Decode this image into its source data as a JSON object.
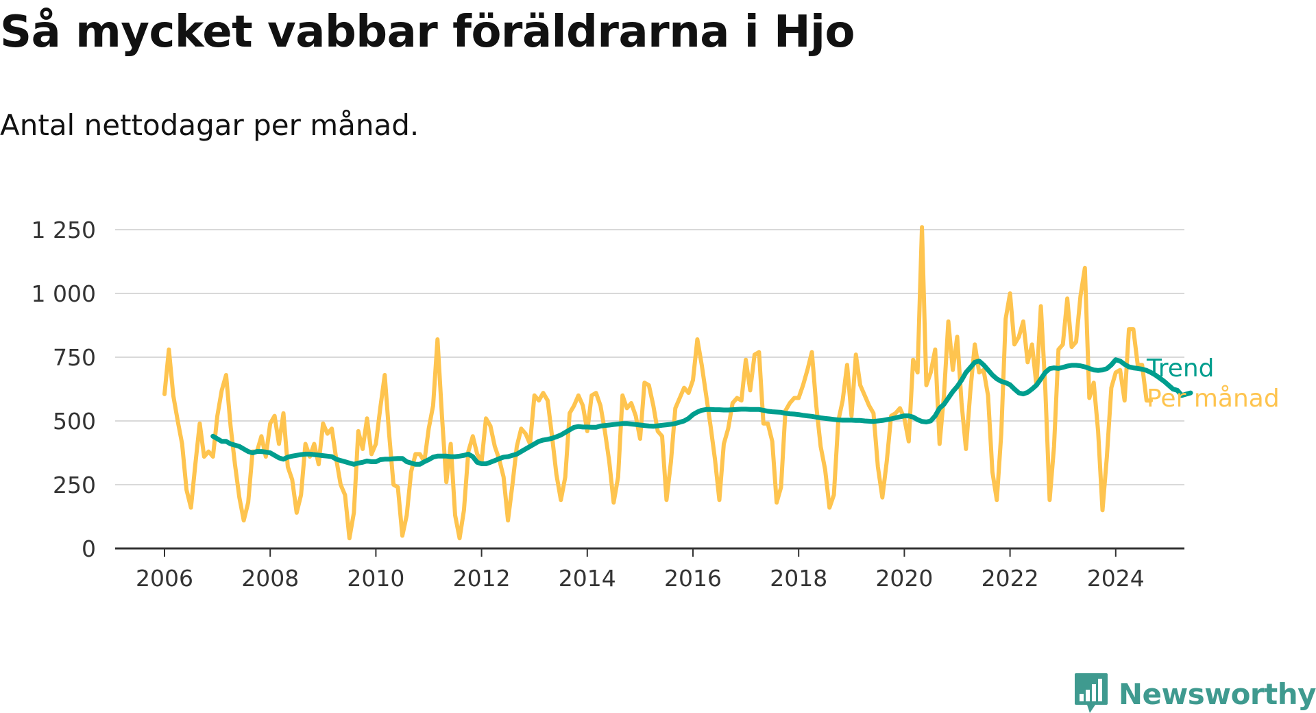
{
  "title": "Så mycket vabbar föräldrarna i Hjo",
  "subtitle": "Antal nettodagar per månad.",
  "brand": {
    "name": "Newsworthy",
    "icon": "bar-chart-speech-bubble-icon"
  },
  "colors": {
    "monthly": "#fec44f",
    "trend": "#009e8e",
    "grid": "#d9d9d9",
    "axis": "#333333",
    "brand": "#3f9a8f"
  },
  "chart_data": {
    "type": "line",
    "x_axis": {
      "range": [
        "2006-01",
        "2024-05"
      ],
      "ticks": [
        "2006",
        "2008",
        "2010",
        "2012",
        "2014",
        "2016",
        "2018",
        "2020",
        "2022",
        "2024"
      ]
    },
    "y_axis": {
      "range": [
        0,
        1250
      ],
      "ticks": [
        0,
        250,
        500,
        750,
        1000,
        1250
      ],
      "tick_labels": [
        "0",
        "250",
        "500",
        "750",
        "1 000",
        "1 250"
      ]
    },
    "grid": "horizontal",
    "legend_placement": "right-end-of-lines",
    "series": [
      {
        "name": "Per månad",
        "color": "#fec44f",
        "start": "2006-01",
        "values": [
          605,
          780,
          600,
          500,
          410,
          230,
          160,
          330,
          490,
          360,
          380,
          360,
          520,
          620,
          680,
          480,
          330,
          200,
          110,
          180,
          380,
          380,
          440,
          360,
          490,
          520,
          410,
          530,
          320,
          270,
          140,
          210,
          410,
          360,
          410,
          330,
          490,
          450,
          470,
          350,
          250,
          210,
          40,
          140,
          460,
          390,
          510,
          370,
          410,
          550,
          680,
          450,
          250,
          240,
          50,
          130,
          300,
          370,
          370,
          340,
          470,
          560,
          820,
          520,
          260,
          410,
          130,
          40,
          150,
          380,
          440,
          370,
          340,
          510,
          480,
          400,
          350,
          280,
          110,
          250,
          400,
          470,
          450,
          410,
          600,
          580,
          610,
          580,
          440,
          290,
          190,
          280,
          530,
          560,
          600,
          560,
          460,
          600,
          610,
          560,
          460,
          340,
          180,
          280,
          600,
          550,
          570,
          520,
          430,
          650,
          640,
          560,
          460,
          440,
          190,
          340,
          550,
          590,
          630,
          610,
          660,
          820,
          720,
          600,
          480,
          350,
          190,
          410,
          470,
          570,
          590,
          580,
          740,
          620,
          760,
          770,
          490,
          490,
          420,
          180,
          240,
          540,
          570,
          590,
          590,
          640,
          700,
          770,
          560,
          400,
          310,
          160,
          210,
          500,
          580,
          720,
          520,
          760,
          640,
          600,
          560,
          530,
          320,
          200,
          340,
          520,
          530,
          550,
          510,
          420,
          740,
          690,
          1260,
          640,
          690,
          780,
          410,
          600,
          890,
          700,
          830,
          570,
          390,
          620,
          800,
          690,
          700,
          600,
          300,
          190,
          450,
          900,
          1000,
          800,
          830,
          890,
          730,
          800,
          640,
          950,
          630,
          190,
          400,
          780,
          800,
          980,
          790,
          810,
          990,
          1100,
          590,
          650,
          460,
          150,
          360,
          630,
          690,
          700,
          580,
          860,
          860,
          720,
          720,
          580,
          580
        ]
      },
      {
        "name": "Trend",
        "color": "#009e8e",
        "start": "2006-12",
        "values": [
          440,
          430,
          420,
          420,
          410,
          405,
          400,
          390,
          380,
          375,
          380,
          380,
          378,
          375,
          365,
          355,
          350,
          358,
          362,
          365,
          368,
          370,
          370,
          368,
          366,
          364,
          362,
          360,
          350,
          345,
          340,
          335,
          330,
          335,
          338,
          343,
          340,
          340,
          348,
          350,
          350,
          352,
          353,
          353,
          340,
          335,
          330,
          330,
          340,
          348,
          358,
          362,
          362,
          362,
          360,
          360,
          362,
          365,
          370,
          360,
          338,
          332,
          332,
          338,
          345,
          352,
          358,
          360,
          365,
          370,
          380,
          390,
          400,
          410,
          420,
          425,
          428,
          432,
          438,
          445,
          455,
          465,
          475,
          478,
          476,
          476,
          475,
          475,
          480,
          482,
          484,
          486,
          488,
          490,
          490,
          488,
          486,
          484,
          482,
          480,
          479,
          481,
          483,
          485,
          487,
          490,
          495,
          500,
          510,
          525,
          535,
          542,
          545,
          545,
          544,
          544,
          543,
          543,
          544,
          545,
          546,
          546,
          545,
          545,
          545,
          542,
          538,
          536,
          535,
          534,
          530,
          528,
          527,
          525,
          522,
          520,
          518,
          515,
          512,
          510,
          508,
          506,
          504,
          503,
          503,
          503,
          502,
          502,
          500,
          499,
          498,
          500,
          502,
          505,
          508,
          512,
          516,
          520,
          520,
          515,
          505,
          498,
          496,
          500,
          520,
          550,
          565,
          590,
          615,
          635,
          660,
          690,
          710,
          730,
          735,
          720,
          700,
          680,
          665,
          655,
          650,
          642,
          625,
          610,
          606,
          612,
          625,
          640,
          665,
          690,
          705,
          708,
          706,
          710,
          715,
          718,
          718,
          716,
          712,
          706,
          700,
          698,
          700,
          705,
          720,
          740,
          735,
          722,
          712,
          708,
          706,
          703,
          698,
          690,
          680,
          668,
          655,
          640,
          625,
          620,
          600,
          605,
          610
        ]
      }
    ]
  }
}
